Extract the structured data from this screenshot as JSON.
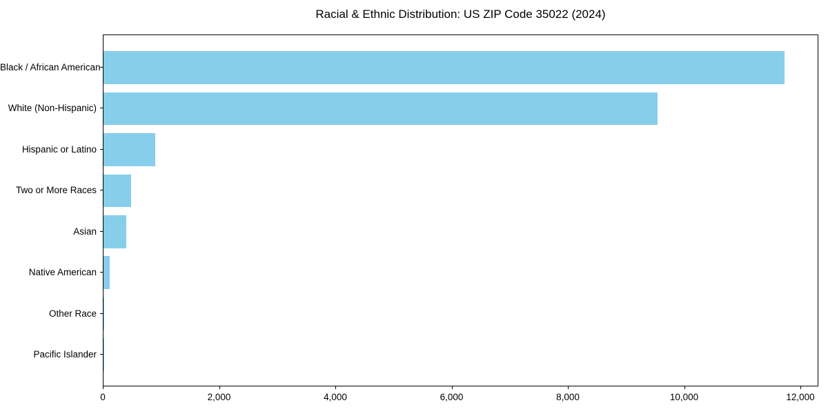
{
  "chart_data": {
    "type": "bar",
    "orientation": "horizontal",
    "title": "Racial & Ethnic Distribution: US ZIP Code 35022 (2024)",
    "categories": [
      "Black / African American",
      "White (Non-Hispanic)",
      "Hispanic or Latino",
      "Two or More Races",
      "Asian",
      "Native American",
      "Other Race",
      "Pacific Islander"
    ],
    "values": [
      11720,
      9530,
      885,
      480,
      395,
      110,
      15,
      4
    ],
    "xlabel": "",
    "ylabel": "",
    "xlim": [
      0,
      12308
    ],
    "xticks": [
      0,
      2000,
      4000,
      6000,
      8000,
      10000,
      12000
    ],
    "xtick_labels": [
      "0",
      "2,000",
      "4,000",
      "6,000",
      "8,000",
      "10,000",
      "12,000"
    ],
    "bar_color": "#87CEEB",
    "background": "#ffffff",
    "text_color": "#000000",
    "grid": false,
    "legend": false
  }
}
